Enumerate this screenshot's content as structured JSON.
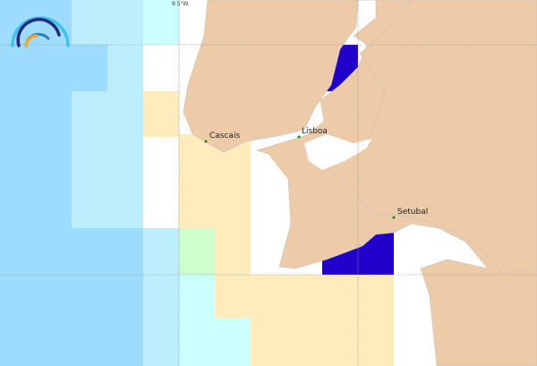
{
  "map": {
    "grid_label": "9.5°W",
    "places": [
      {
        "name": "Cascais"
      },
      {
        "name": "Lisboa"
      },
      {
        "name": "Setubal"
      }
    ],
    "colors": {
      "land": "#edcba9",
      "sea_deep": "#9ddcfc",
      "sea_mid": "#bdeefe",
      "sea_light": "#ccffff",
      "cream": "#feecbd",
      "green": "#ccffcc",
      "highlight": "#2200cc",
      "marker": "#118811"
    },
    "logo": "rainbow-arc-logo"
  }
}
